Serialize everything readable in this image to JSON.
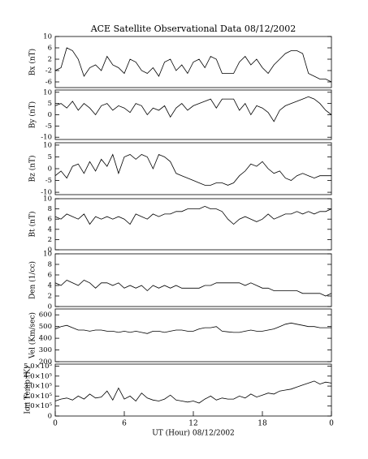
{
  "chart_data": [
    {
      "type": "line",
      "title": "ACE Satellite Observational Data   08/12/2002",
      "ylabel": "Bx (nT)",
      "color": "#000000",
      "x": [
        0,
        0.5,
        1,
        1.5,
        2,
        2.5,
        3,
        3.5,
        4,
        4.5,
        5,
        5.5,
        6,
        6.5,
        7,
        7.5,
        8,
        8.5,
        9,
        9.5,
        10,
        10.5,
        11,
        11.5,
        12,
        12.5,
        13,
        13.5,
        14,
        14.5,
        15,
        15.5,
        16,
        16.5,
        17,
        17.5,
        18,
        18.5,
        19,
        19.5,
        20,
        20.5,
        21,
        21.5,
        22,
        22.5,
        23,
        23.5,
        24
      ],
      "values": [
        -2,
        -1,
        6,
        5,
        2,
        -4,
        -1,
        0,
        -2,
        3,
        0,
        -1,
        -3,
        2,
        1,
        -2,
        -3,
        -1,
        -4,
        1,
        2,
        -2,
        0,
        -3,
        1,
        2,
        -1,
        3,
        2,
        -3,
        -3,
        -3,
        1,
        3,
        0,
        2,
        -1,
        -3,
        0,
        2,
        4,
        5,
        5,
        4,
        -3,
        -4,
        -5,
        -5,
        -6
      ],
      "xlim": [
        0,
        24
      ],
      "ylim": [
        -8,
        10
      ],
      "yticks": [
        -6,
        -2,
        2,
        6,
        10
      ]
    },
    {
      "type": "line",
      "ylabel": "By (nT)",
      "color": "#000000",
      "x": [
        0,
        0.5,
        1,
        1.5,
        2,
        2.5,
        3,
        3.5,
        4,
        4.5,
        5,
        5.5,
        6,
        6.5,
        7,
        7.5,
        8,
        8.5,
        9,
        9.5,
        10,
        10.5,
        11,
        11.5,
        12,
        12.5,
        13,
        13.5,
        14,
        14.5,
        15,
        15.5,
        16,
        16.5,
        17,
        17.5,
        18,
        18.5,
        19,
        19.5,
        20,
        20.5,
        21,
        21.5,
        22,
        22.5,
        23,
        23.5,
        24
      ],
      "values": [
        4,
        5,
        3,
        6,
        2,
        5,
        3,
        0,
        4,
        5,
        2,
        4,
        3,
        1,
        5,
        4,
        0,
        3,
        2,
        4,
        -1,
        3,
        5,
        2,
        4,
        5,
        6,
        7,
        3,
        7,
        7,
        7,
        2,
        5,
        0,
        4,
        3,
        1,
        -3,
        2,
        4,
        5,
        6,
        7,
        8,
        7,
        5,
        2,
        0
      ],
      "xlim": [
        0,
        24
      ],
      "ylim": [
        -11,
        11
      ],
      "yticks": [
        -10,
        -5,
        0,
        5,
        10
      ]
    },
    {
      "type": "line",
      "ylabel": "Bz (nT)",
      "color": "#000000",
      "x": [
        0,
        0.5,
        1,
        1.5,
        2,
        2.5,
        3,
        3.5,
        4,
        4.5,
        5,
        5.5,
        6,
        6.5,
        7,
        7.5,
        8,
        8.5,
        9,
        9.5,
        10,
        10.5,
        11,
        11.5,
        12,
        12.5,
        13,
        13.5,
        14,
        14.5,
        15,
        15.5,
        16,
        16.5,
        17,
        17.5,
        18,
        18.5,
        19,
        19.5,
        20,
        20.5,
        21,
        21.5,
        22,
        22.5,
        23,
        23.5,
        24
      ],
      "values": [
        -3,
        -1,
        -4,
        1,
        2,
        -2,
        3,
        -1,
        4,
        1,
        6,
        -2,
        5,
        6,
        4,
        6,
        5,
        0,
        6,
        5,
        3,
        -2,
        -3,
        -4,
        -5,
        -6,
        -7,
        -7,
        -6,
        -6,
        -7,
        -6,
        -3,
        -1,
        2,
        1,
        3,
        0,
        -2,
        -1,
        -4,
        -5,
        -3,
        -2,
        -3,
        -4,
        -3,
        -3,
        -3
      ],
      "xlim": [
        0,
        24
      ],
      "ylim": [
        -11,
        11
      ],
      "yticks": [
        -10,
        -5,
        0,
        5,
        10
      ]
    },
    {
      "type": "line",
      "ylabel": "Bt (nT)",
      "color": "#000000",
      "x": [
        0,
        0.5,
        1,
        1.5,
        2,
        2.5,
        3,
        3.5,
        4,
        4.5,
        5,
        5.5,
        6,
        6.5,
        7,
        7.5,
        8,
        8.5,
        9,
        9.5,
        10,
        10.5,
        11,
        11.5,
        12,
        12.5,
        13,
        13.5,
        14,
        14.5,
        15,
        15.5,
        16,
        16.5,
        17,
        17.5,
        18,
        18.5,
        19,
        19.5,
        20,
        20.5,
        21,
        21.5,
        22,
        22.5,
        23,
        23.5,
        24
      ],
      "values": [
        6.5,
        6,
        7,
        6.5,
        6,
        7,
        5,
        6.5,
        6,
        6.5,
        6,
        6.5,
        6,
        5,
        7,
        6.5,
        6,
        7,
        6.5,
        7,
        7,
        7.5,
        7.5,
        8,
        8,
        8,
        8.5,
        8,
        8,
        7.5,
        6,
        5,
        6,
        6.5,
        6,
        5.5,
        6,
        7,
        6,
        6.5,
        7,
        7,
        7.5,
        7,
        7.5,
        7,
        7.5,
        7.5,
        8
      ],
      "xlim": [
        0,
        24
      ],
      "ylim": [
        0,
        10
      ],
      "yticks": [
        0,
        2,
        4,
        6,
        8,
        10
      ]
    },
    {
      "type": "line",
      "ylabel": "Den (1/cc)",
      "color": "#000000",
      "x": [
        0,
        0.5,
        1,
        1.5,
        2,
        2.5,
        3,
        3.5,
        4,
        4.5,
        5,
        5.5,
        6,
        6.5,
        7,
        7.5,
        8,
        8.5,
        9,
        9.5,
        10,
        10.5,
        11,
        11.5,
        12,
        12.5,
        13,
        13.5,
        14,
        14.5,
        15,
        15.5,
        16,
        16.5,
        17,
        17.5,
        18,
        18.5,
        19,
        19.5,
        20,
        20.5,
        21,
        21.5,
        22,
        22.5,
        23,
        23.5,
        24
      ],
      "values": [
        4.5,
        4,
        5,
        4.5,
        4,
        5,
        4.5,
        3.5,
        4.5,
        4.5,
        4,
        4.5,
        3.5,
        4,
        3.5,
        4,
        3,
        4,
        3.5,
        4,
        3.5,
        4,
        3.5,
        3.5,
        3.5,
        3.5,
        4,
        4,
        4.5,
        4.5,
        4.5,
        4.5,
        4.5,
        4,
        4.5,
        4,
        3.5,
        3.5,
        3,
        3,
        3,
        3,
        3,
        2.5,
        2.5,
        2.5,
        2.5,
        2,
        2.5
      ],
      "xlim": [
        0,
        24
      ],
      "ylim": [
        0,
        10
      ],
      "yticks": [
        0,
        2,
        4,
        6,
        8,
        10
      ]
    },
    {
      "type": "line",
      "ylabel": "Vel (Km/sec)",
      "color": "#000000",
      "x": [
        0,
        0.5,
        1,
        1.5,
        2,
        2.5,
        3,
        3.5,
        4,
        4.5,
        5,
        5.5,
        6,
        6.5,
        7,
        7.5,
        8,
        8.5,
        9,
        9.5,
        10,
        10.5,
        11,
        11.5,
        12,
        12.5,
        13,
        13.5,
        14,
        14.5,
        15,
        15.5,
        16,
        16.5,
        17,
        17.5,
        18,
        18.5,
        19,
        19.5,
        20,
        20.5,
        21,
        21.5,
        22,
        22.5,
        23,
        23.5,
        24
      ],
      "values": [
        480,
        500,
        510,
        490,
        470,
        470,
        460,
        470,
        470,
        460,
        460,
        450,
        460,
        450,
        460,
        450,
        440,
        460,
        460,
        450,
        460,
        470,
        470,
        460,
        460,
        480,
        490,
        490,
        500,
        460,
        455,
        450,
        450,
        460,
        470,
        460,
        460,
        470,
        480,
        500,
        520,
        530,
        520,
        510,
        500,
        500,
        490,
        490,
        490
      ],
      "xlim": [
        0,
        24
      ],
      "ylim": [
        200,
        650
      ],
      "yticks": [
        200,
        300,
        400,
        500,
        600
      ]
    },
    {
      "type": "line",
      "ylabel": "Ion Temp (K)",
      "xlabel": "UT (Hour)   08/12/2002",
      "color": "#000000",
      "x": [
        0,
        0.5,
        1,
        1.5,
        2,
        2.5,
        3,
        3.5,
        4,
        4.5,
        5,
        5.5,
        6,
        6.5,
        7,
        7.5,
        8,
        8.5,
        9,
        9.5,
        10,
        10.5,
        11,
        11.5,
        12,
        12.5,
        13,
        13.5,
        14,
        14.5,
        15,
        15.5,
        16,
        16.5,
        17,
        17.5,
        18,
        18.5,
        19,
        19.5,
        20,
        20.5,
        21,
        21.5,
        22,
        22.5,
        23,
        23.5,
        24
      ],
      "values": [
        150000,
        170000,
        180000,
        160000,
        200000,
        170000,
        220000,
        180000,
        190000,
        250000,
        160000,
        280000,
        170000,
        200000,
        150000,
        230000,
        180000,
        160000,
        150000,
        170000,
        210000,
        160000,
        150000,
        140000,
        150000,
        130000,
        170000,
        200000,
        160000,
        180000,
        170000,
        170000,
        200000,
        180000,
        220000,
        190000,
        210000,
        230000,
        220000,
        250000,
        260000,
        270000,
        290000,
        310000,
        330000,
        350000,
        320000,
        340000,
        330000
      ],
      "xlim": [
        0,
        24
      ],
      "ylim": [
        0,
        520000
      ],
      "yticks": [
        0,
        {
          "value": 100000,
          "label": "1.0×10⁵"
        },
        {
          "value": 200000,
          "label": "2.0×10⁵"
        },
        {
          "value": 300000,
          "label": "3.0×10⁵"
        },
        {
          "value": 400000,
          "label": "4.0×10⁵"
        },
        {
          "value": 500000,
          "label": "5.0×10⁵"
        }
      ],
      "xticks": [
        0,
        6,
        12,
        18,
        {
          "value": 24,
          "label": "0"
        }
      ]
    }
  ]
}
